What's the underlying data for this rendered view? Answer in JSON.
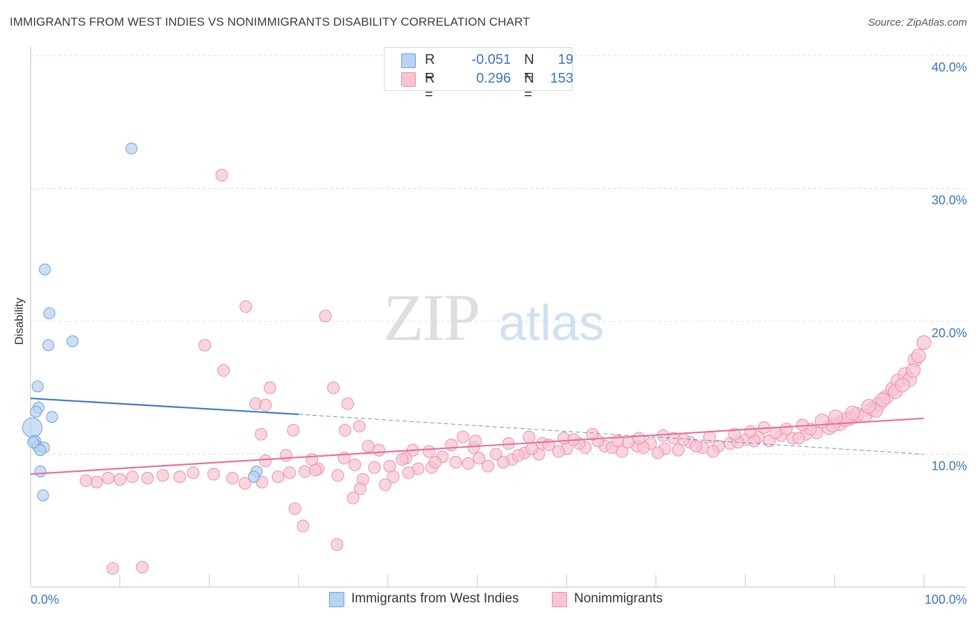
{
  "header": {
    "title": "IMMIGRANTS FROM WEST INDIES VS NONIMMIGRANTS DISABILITY CORRELATION CHART",
    "source": "Source: ZipAtlas.com"
  },
  "watermark": {
    "zip": "ZIP",
    "atlas": "atlas"
  },
  "legend_top": {
    "rows": [
      {
        "r_label": "R =",
        "r_value": "-0.051",
        "n_label": "N =",
        "n_value": "19",
        "color": "#b8d2f2"
      },
      {
        "r_label": "R =",
        "r_value": "0.296",
        "n_label": "N =",
        "n_value": "153",
        "color": "#f8c3d2"
      }
    ]
  },
  "legend_bottom": [
    {
      "label": "Immigrants from West Indies",
      "color": "#b8d2f2"
    },
    {
      "label": "Nonimmigrants",
      "color": "#f8c3d2"
    }
  ],
  "colors": {
    "blue_fill": "#b8d2f2",
    "blue_stroke": "#6a9fdc",
    "blue_line": "#3a78d0",
    "pink_fill": "#f8c3d2",
    "pink_stroke": "#eb8fac",
    "pink_line": "#e8709a",
    "grid": "#dcdcdc",
    "tick_label": "#3b73c8"
  },
  "chart_data": {
    "type": "scatter",
    "title": "IMMIGRANTS FROM WEST INDIES VS NONIMMIGRANTS DISABILITY CORRELATION CHART",
    "xlabel": "",
    "ylabel": "Disability",
    "xlim": [
      0,
      100
    ],
    "ylim": [
      0,
      40
    ],
    "x_tick_labels": [
      "0.0%",
      "100.0%"
    ],
    "y_ticks": [
      10,
      20,
      30,
      40
    ],
    "y_tick_labels": [
      "10.0%",
      "20.0%",
      "30.0%",
      "40.0%"
    ],
    "grid": true,
    "legend_position": "bottom",
    "series": [
      {
        "name": "Immigrants from West Indies",
        "R": -0.051,
        "N": 19,
        "points": [
          [
            11.3,
            33.0
          ],
          [
            1.6,
            23.9
          ],
          [
            2.1,
            20.6
          ],
          [
            4.7,
            18.5
          ],
          [
            2.0,
            18.2
          ],
          [
            0.8,
            15.1
          ],
          [
            0.9,
            13.5
          ],
          [
            0.6,
            13.2
          ],
          [
            2.4,
            12.8
          ],
          [
            0.2,
            12.0
          ],
          [
            0.5,
            11.0
          ],
          [
            0.8,
            10.6
          ],
          [
            1.5,
            10.5
          ],
          [
            1.1,
            10.3
          ],
          [
            25.3,
            8.7
          ],
          [
            1.1,
            8.7
          ],
          [
            25.0,
            8.3
          ],
          [
            1.4,
            6.9
          ],
          [
            0.3,
            10.9
          ]
        ],
        "trend": {
          "x": [
            0,
            30
          ],
          "y": [
            14.2,
            13.0
          ],
          "dashed_to": [
            100,
            10.0
          ]
        }
      },
      {
        "name": "Nonimmigrants",
        "R": 0.296,
        "N": 153,
        "points": [
          [
            21.4,
            31.0
          ],
          [
            24.1,
            21.1
          ],
          [
            33.0,
            20.4
          ],
          [
            19.5,
            18.2
          ],
          [
            21.6,
            16.3
          ],
          [
            33.9,
            15.0
          ],
          [
            26.8,
            15.0
          ],
          [
            35.5,
            13.8
          ],
          [
            25.2,
            13.8
          ],
          [
            26.3,
            13.7
          ],
          [
            36.8,
            12.1
          ],
          [
            35.2,
            11.8
          ],
          [
            29.4,
            11.8
          ],
          [
            25.8,
            11.5
          ],
          [
            48.4,
            11.3
          ],
          [
            37.8,
            10.6
          ],
          [
            39.0,
            10.3
          ],
          [
            49.6,
            10.5
          ],
          [
            44.6,
            10.2
          ],
          [
            42.8,
            10.3
          ],
          [
            28.6,
            9.9
          ],
          [
            31.5,
            9.6
          ],
          [
            42.0,
            9.7
          ],
          [
            35.1,
            9.7
          ],
          [
            26.3,
            9.5
          ],
          [
            52.1,
            10.0
          ],
          [
            55.3,
            10.1
          ],
          [
            56.9,
            10.0
          ],
          [
            53.9,
            9.6
          ],
          [
            50.2,
            9.7
          ],
          [
            57.3,
            10.8
          ],
          [
            60.0,
            10.4
          ],
          [
            62.1,
            10.5
          ],
          [
            64.3,
            10.6
          ],
          [
            59.1,
            10.2
          ],
          [
            66.2,
            10.2
          ],
          [
            67.9,
            10.6
          ],
          [
            69.4,
            10.8
          ],
          [
            71.0,
            10.4
          ],
          [
            72.5,
            10.3
          ],
          [
            73.8,
            10.9
          ],
          [
            75.2,
            10.5
          ],
          [
            77.0,
            10.6
          ],
          [
            78.3,
            10.8
          ],
          [
            80.1,
            11.1
          ],
          [
            81.5,
            11.3
          ],
          [
            82.7,
            11.0
          ],
          [
            84.0,
            11.4
          ],
          [
            85.3,
            11.2
          ],
          [
            86.8,
            11.5
          ],
          [
            88.0,
            11.6
          ],
          [
            89.4,
            12.0
          ],
          [
            90.6,
            12.3
          ],
          [
            91.7,
            12.7
          ],
          [
            92.5,
            13.0
          ],
          [
            93.4,
            12.9
          ],
          [
            94.2,
            13.4
          ],
          [
            95.0,
            13.8
          ],
          [
            95.8,
            14.3
          ],
          [
            96.5,
            14.9
          ],
          [
            97.1,
            15.5
          ],
          [
            97.9,
            16.0
          ],
          [
            99.0,
            17.1
          ],
          [
            100.0,
            18.4
          ],
          [
            98.4,
            15.6
          ],
          [
            94.6,
            13.3
          ],
          [
            91.2,
            12.6
          ],
          [
            89.8,
            12.2
          ],
          [
            87.3,
            11.9
          ],
          [
            86.0,
            11.2
          ],
          [
            83.4,
            11.6
          ],
          [
            81.0,
            11.0
          ],
          [
            79.2,
            10.9
          ],
          [
            76.4,
            10.2
          ],
          [
            74.5,
            10.6
          ],
          [
            72.0,
            11.2
          ],
          [
            70.2,
            10.1
          ],
          [
            68.6,
            10.5
          ],
          [
            66.9,
            10.9
          ],
          [
            65.1,
            10.5
          ],
          [
            63.5,
            11.0
          ],
          [
            61.4,
            10.8
          ],
          [
            59.7,
            11.2
          ],
          [
            58.0,
            10.7
          ],
          [
            56.1,
            10.4
          ],
          [
            54.6,
            9.9
          ],
          [
            52.9,
            9.4
          ],
          [
            51.2,
            9.1
          ],
          [
            49.0,
            9.3
          ],
          [
            47.6,
            9.4
          ],
          [
            46.1,
            9.8
          ],
          [
            44.9,
            9.0
          ],
          [
            43.4,
            8.9
          ],
          [
            41.6,
            9.6
          ],
          [
            40.2,
            9.1
          ],
          [
            38.5,
            9.0
          ],
          [
            36.3,
            9.2
          ],
          [
            34.4,
            8.4
          ],
          [
            32.2,
            8.9
          ],
          [
            30.7,
            8.7
          ],
          [
            29.0,
            8.6
          ],
          [
            27.7,
            8.3
          ],
          [
            25.9,
            7.9
          ],
          [
            24.0,
            7.8
          ],
          [
            22.6,
            8.2
          ],
          [
            20.5,
            8.5
          ],
          [
            18.2,
            8.6
          ],
          [
            16.7,
            8.3
          ],
          [
            14.8,
            8.4
          ],
          [
            13.1,
            8.2
          ],
          [
            11.4,
            8.3
          ],
          [
            10.0,
            8.1
          ],
          [
            8.7,
            8.2
          ],
          [
            7.4,
            7.9
          ],
          [
            6.2,
            8.0
          ],
          [
            36.1,
            6.7
          ],
          [
            34.3,
            3.2
          ],
          [
            29.6,
            5.9
          ],
          [
            30.5,
            4.6
          ],
          [
            9.2,
            1.4
          ],
          [
            12.5,
            1.5
          ],
          [
            45.3,
            9.4
          ],
          [
            47.1,
            10.7
          ],
          [
            49.8,
            11.0
          ],
          [
            53.5,
            10.8
          ],
          [
            55.8,
            11.3
          ],
          [
            60.8,
            11.1
          ],
          [
            62.9,
            11.5
          ],
          [
            65.7,
            11.0
          ],
          [
            68.1,
            11.2
          ],
          [
            70.8,
            11.4
          ],
          [
            73.1,
            11.1
          ],
          [
            76.0,
            11.3
          ],
          [
            78.8,
            11.5
          ],
          [
            80.6,
            11.7
          ],
          [
            82.1,
            12.0
          ],
          [
            84.6,
            11.9
          ],
          [
            86.4,
            12.2
          ],
          [
            88.6,
            12.5
          ],
          [
            90.1,
            12.8
          ],
          [
            92.0,
            13.1
          ],
          [
            93.8,
            13.6
          ],
          [
            95.4,
            14.1
          ],
          [
            96.8,
            14.7
          ],
          [
            97.6,
            15.2
          ],
          [
            98.8,
            16.3
          ],
          [
            99.4,
            17.4
          ],
          [
            40.6,
            8.3
          ],
          [
            42.3,
            8.6
          ],
          [
            31.9,
            8.8
          ],
          [
            37.2,
            8.1
          ],
          [
            39.7,
            7.7
          ],
          [
            36.9,
            7.4
          ]
        ],
        "trend": {
          "x": [
            0,
            100
          ],
          "y": [
            8.5,
            12.7
          ]
        }
      }
    ]
  }
}
